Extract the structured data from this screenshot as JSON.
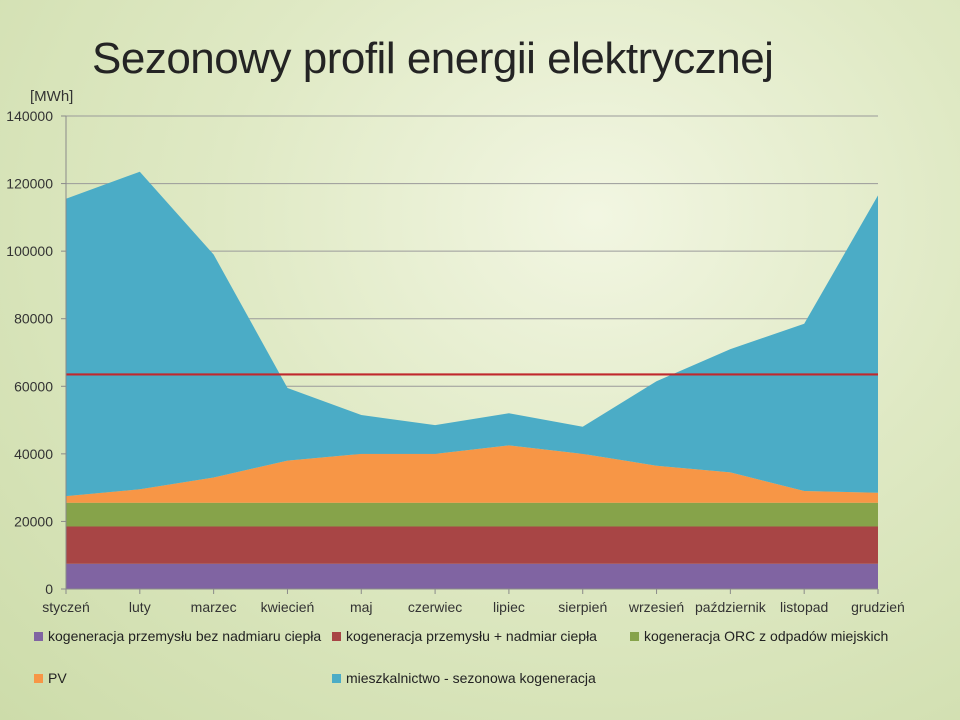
{
  "chart_data": {
    "type": "area",
    "stacked": true,
    "title": "Sezonowy profil energii elektrycznej",
    "ylabel": "[MWh]",
    "ylim": [
      0,
      140000
    ],
    "yticks": [
      "0",
      "20000",
      "40000",
      "60000",
      "80000",
      "100000",
      "120000",
      "140000"
    ],
    "grid": true,
    "categories": [
      "styczeń",
      "luty",
      "marzec",
      "kwiecień",
      "maj",
      "czerwiec",
      "lipiec",
      "sierpień",
      "wrzesień",
      "październik",
      "listopad",
      "grudzień"
    ],
    "series": [
      {
        "name": "kogeneracja przemysłu bez nadmiaru ciepła",
        "color": "#8064a2",
        "values": [
          7500,
          7500,
          7500,
          7500,
          7500,
          7500,
          7500,
          7500,
          7500,
          7500,
          7500,
          7500
        ]
      },
      {
        "name": "kogeneracja przemysłu + nadmiar ciepła",
        "color": "#a84545",
        "values": [
          11000,
          11000,
          11000,
          11000,
          11000,
          11000,
          11000,
          11000,
          11000,
          11000,
          11000,
          11000
        ]
      },
      {
        "name": "kogeneracja ORC z odpadów miejskich",
        "color": "#86a34a",
        "values": [
          7000,
          7000,
          7000,
          7000,
          7000,
          7000,
          7000,
          7000,
          7000,
          7000,
          7000,
          7000
        ]
      },
      {
        "name": "PV",
        "color": "#f79646",
        "values": [
          2000,
          4000,
          7500,
          12500,
          14500,
          14500,
          17000,
          14500,
          11000,
          9000,
          3500,
          3000
        ]
      },
      {
        "name": "mieszkalnictwo - sezonowa kogeneracja",
        "color": "#4bacc6",
        "values": [
          88000,
          94000,
          66000,
          21500,
          11500,
          8500,
          9500,
          8000,
          25000,
          36500,
          49500,
          88000
        ]
      }
    ],
    "reference_line": {
      "value": 63500,
      "color": "#c0282d"
    },
    "legend_position": "bottom"
  }
}
